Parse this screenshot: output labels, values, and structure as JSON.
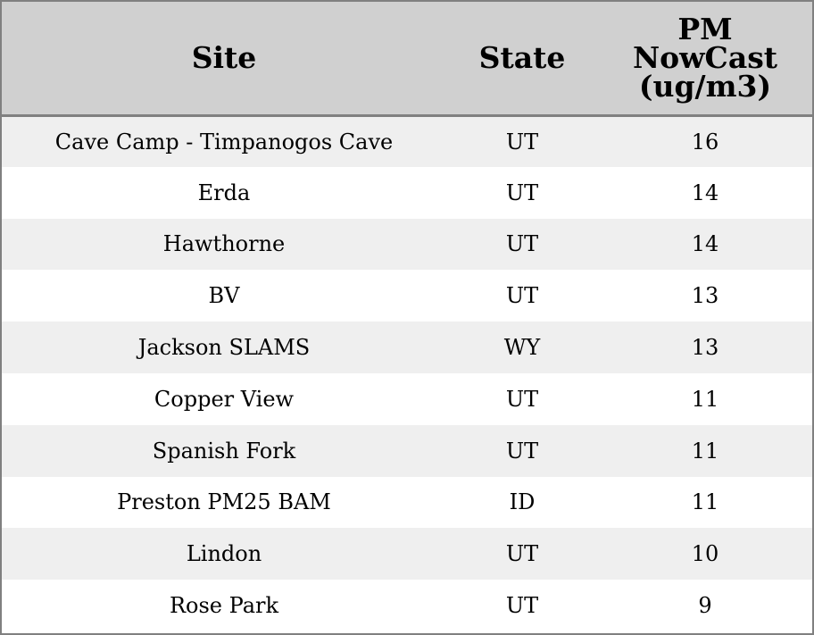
{
  "colors": {
    "header_bg": "#d0d0d0",
    "row_shaded": "#efefef",
    "row_plain": "#ffffff",
    "border": "#808080",
    "text": "#000000"
  },
  "chart_data": {
    "type": "table",
    "columns": [
      "Site",
      "State",
      "PM NowCast (ug/m3)"
    ],
    "header_lines": {
      "site": [
        "Site"
      ],
      "state": [
        "State"
      ],
      "pm": [
        "PM",
        "NowCast",
        "(ug/m3)"
      ]
    },
    "rows": [
      {
        "site": "Cave Camp - Timpanogos Cave",
        "state": "UT",
        "pm": "16"
      },
      {
        "site": "Erda",
        "state": "UT",
        "pm": "14"
      },
      {
        "site": "Hawthorne",
        "state": "UT",
        "pm": "14"
      },
      {
        "site": "BV",
        "state": "UT",
        "pm": "13"
      },
      {
        "site": "Jackson SLAMS",
        "state": "WY",
        "pm": "13"
      },
      {
        "site": "Copper View",
        "state": "UT",
        "pm": "11"
      },
      {
        "site": "Spanish Fork",
        "state": "UT",
        "pm": "11"
      },
      {
        "site": "Preston PM25 BAM",
        "state": "ID",
        "pm": "11"
      },
      {
        "site": "Lindon",
        "state": "UT",
        "pm": "10"
      },
      {
        "site": "Rose Park",
        "state": "UT",
        "pm": "9"
      }
    ]
  }
}
